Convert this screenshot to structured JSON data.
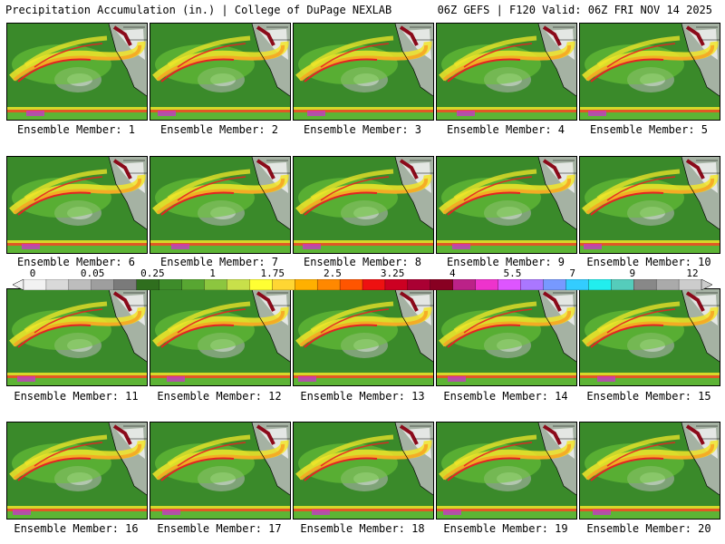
{
  "header": {
    "left": "Precipitation Accumulation (in.) | College of DuPage NEXLAB",
    "right": "06Z GEFS | F120 Valid: 06Z FRI NOV 14 2025"
  },
  "members": [
    "Ensemble Member: 1",
    "Ensemble Member: 2",
    "Ensemble Member: 3",
    "Ensemble Member: 4",
    "Ensemble Member: 5",
    "Ensemble Member: 6",
    "Ensemble Member: 7",
    "Ensemble Member: 8",
    "Ensemble Member: 9",
    "Ensemble Member: 10",
    "Ensemble Member: 11",
    "Ensemble Member: 12",
    "Ensemble Member: 13",
    "Ensemble Member: 14",
    "Ensemble Member: 15",
    "Ensemble Member: 16",
    "Ensemble Member: 17",
    "Ensemble Member: 18",
    "Ensemble Member: 19",
    "Ensemble Member: 20"
  ],
  "colorbar": {
    "ticks": [
      "0",
      "0.05",
      "0.25",
      "1",
      "1.75",
      "2.5",
      "3.25",
      "4",
      "5.5",
      "7",
      "9",
      "12"
    ],
    "colors": [
      "#f2f2f2",
      "#d9d9d9",
      "#bdbdbd",
      "#9e9e9e",
      "#7a7a7a",
      "#2f6e1e",
      "#3e8c2a",
      "#58a632",
      "#8cc63f",
      "#c8e04a",
      "#ffff33",
      "#ffd633",
      "#ffb000",
      "#ff8800",
      "#ff5500",
      "#ee1111",
      "#cc0022",
      "#aa0033",
      "#880022",
      "#bb2288",
      "#ee33cc",
      "#dd55ff",
      "#aa77ff",
      "#7799ff",
      "#33ccff",
      "#22eeee",
      "#55ccbb",
      "#888888",
      "#aaaaaa",
      "#cccccc"
    ]
  },
  "map_palette": {
    "base": "#3a8a2a",
    "light_green": "#6cc63a",
    "yellow": "#f2e52a",
    "orange": "#f5a623",
    "red": "#e52222",
    "dark_red": "#8b0a1a",
    "gray": "#b8b8b8",
    "white": "#f4f4f4",
    "magenta": "#cc33cc"
  }
}
